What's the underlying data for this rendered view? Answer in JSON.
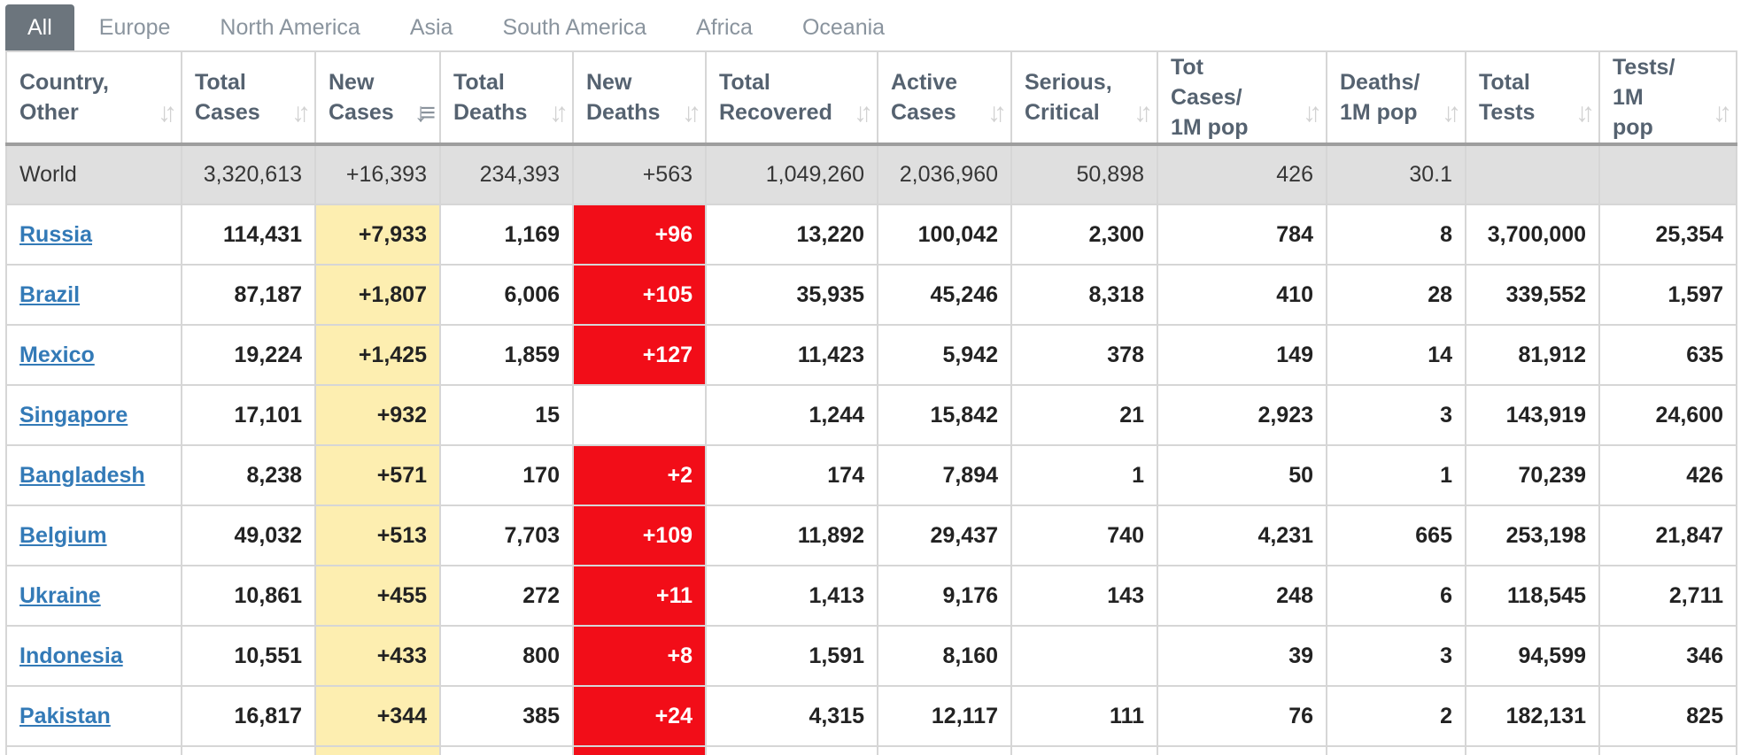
{
  "tabs": [
    "All",
    "Europe",
    "North America",
    "Asia",
    "South America",
    "Africa",
    "Oceania"
  ],
  "columns": [
    {
      "line1": "Country,",
      "line2": "Other"
    },
    {
      "line1": "Total",
      "line2": "Cases"
    },
    {
      "line1": "New",
      "line2": "Cases"
    },
    {
      "line1": "Total",
      "line2": "Deaths"
    },
    {
      "line1": "New",
      "line2": "Deaths"
    },
    {
      "line1": "Total",
      "line2": "Recovered"
    },
    {
      "line1": "Active",
      "line2": "Cases"
    },
    {
      "line1": "Serious,",
      "line2": "Critical"
    },
    {
      "line1": "Tot Cases/",
      "line2": "1M pop"
    },
    {
      "line1": "Deaths/",
      "line2": "1M pop"
    },
    {
      "line1": "Total",
      "line2": "Tests"
    },
    {
      "line1": "Tests/",
      "line2": "1M pop"
    }
  ],
  "sort_icons": [
    "↓↑",
    "↓↑",
    "↓≡",
    "↓↑",
    "↓↑",
    "↓↑",
    "↓↑",
    "↓↑",
    "↓↑",
    "↓↑",
    "↓↑",
    "↓↑"
  ],
  "world": {
    "name": "World",
    "total_cases": "3,320,613",
    "new_cases": "+16,393",
    "total_deaths": "234,393",
    "new_deaths": "+563",
    "total_recovered": "1,049,260",
    "active_cases": "2,036,960",
    "serious_critical": "50,898",
    "cases_per_1m": "426",
    "deaths_per_1m": "30.1",
    "total_tests": "",
    "tests_per_1m": ""
  },
  "rows": [
    {
      "name": "Russia",
      "total_cases": "114,431",
      "new_cases": "+7,933",
      "total_deaths": "1,169",
      "new_deaths": "+96",
      "total_recovered": "13,220",
      "active_cases": "100,042",
      "serious_critical": "2,300",
      "cases_per_1m": "784",
      "deaths_per_1m": "8",
      "total_tests": "3,700,000",
      "tests_per_1m": "25,354"
    },
    {
      "name": "Brazil",
      "total_cases": "87,187",
      "new_cases": "+1,807",
      "total_deaths": "6,006",
      "new_deaths": "+105",
      "total_recovered": "35,935",
      "active_cases": "45,246",
      "serious_critical": "8,318",
      "cases_per_1m": "410",
      "deaths_per_1m": "28",
      "total_tests": "339,552",
      "tests_per_1m": "1,597"
    },
    {
      "name": "Mexico",
      "total_cases": "19,224",
      "new_cases": "+1,425",
      "total_deaths": "1,859",
      "new_deaths": "+127",
      "total_recovered": "11,423",
      "active_cases": "5,942",
      "serious_critical": "378",
      "cases_per_1m": "149",
      "deaths_per_1m": "14",
      "total_tests": "81,912",
      "tests_per_1m": "635"
    },
    {
      "name": "Singapore",
      "total_cases": "17,101",
      "new_cases": "+932",
      "total_deaths": "15",
      "new_deaths": "",
      "total_recovered": "1,244",
      "active_cases": "15,842",
      "serious_critical": "21",
      "cases_per_1m": "2,923",
      "deaths_per_1m": "3",
      "total_tests": "143,919",
      "tests_per_1m": "24,600"
    },
    {
      "name": "Bangladesh",
      "total_cases": "8,238",
      "new_cases": "+571",
      "total_deaths": "170",
      "new_deaths": "+2",
      "total_recovered": "174",
      "active_cases": "7,894",
      "serious_critical": "1",
      "cases_per_1m": "50",
      "deaths_per_1m": "1",
      "total_tests": "70,239",
      "tests_per_1m": "426"
    },
    {
      "name": "Belgium",
      "total_cases": "49,032",
      "new_cases": "+513",
      "total_deaths": "7,703",
      "new_deaths": "+109",
      "total_recovered": "11,892",
      "active_cases": "29,437",
      "serious_critical": "740",
      "cases_per_1m": "4,231",
      "deaths_per_1m": "665",
      "total_tests": "253,198",
      "tests_per_1m": "21,847"
    },
    {
      "name": "Ukraine",
      "total_cases": "10,861",
      "new_cases": "+455",
      "total_deaths": "272",
      "new_deaths": "+11",
      "total_recovered": "1,413",
      "active_cases": "9,176",
      "serious_critical": "143",
      "cases_per_1m": "248",
      "deaths_per_1m": "6",
      "total_tests": "118,545",
      "tests_per_1m": "2,711"
    },
    {
      "name": "Indonesia",
      "total_cases": "10,551",
      "new_cases": "+433",
      "total_deaths": "800",
      "new_deaths": "+8",
      "total_recovered": "1,591",
      "active_cases": "8,160",
      "serious_critical": "",
      "cases_per_1m": "39",
      "deaths_per_1m": "3",
      "total_tests": "94,599",
      "tests_per_1m": "346"
    },
    {
      "name": "Pakistan",
      "total_cases": "16,817",
      "new_cases": "+344",
      "total_deaths": "385",
      "new_deaths": "+24",
      "total_recovered": "4,315",
      "active_cases": "12,117",
      "serious_critical": "111",
      "cases_per_1m": "76",
      "deaths_per_1m": "2",
      "total_tests": "182,131",
      "tests_per_1m": "825"
    }
  ],
  "colors": {
    "tab_active_bg": "#6c757d",
    "new_cases_bg": "#fdeeb0",
    "new_deaths_bg": "#f20d18",
    "world_row_bg": "#dfdfdf",
    "link": "#337ab7"
  }
}
